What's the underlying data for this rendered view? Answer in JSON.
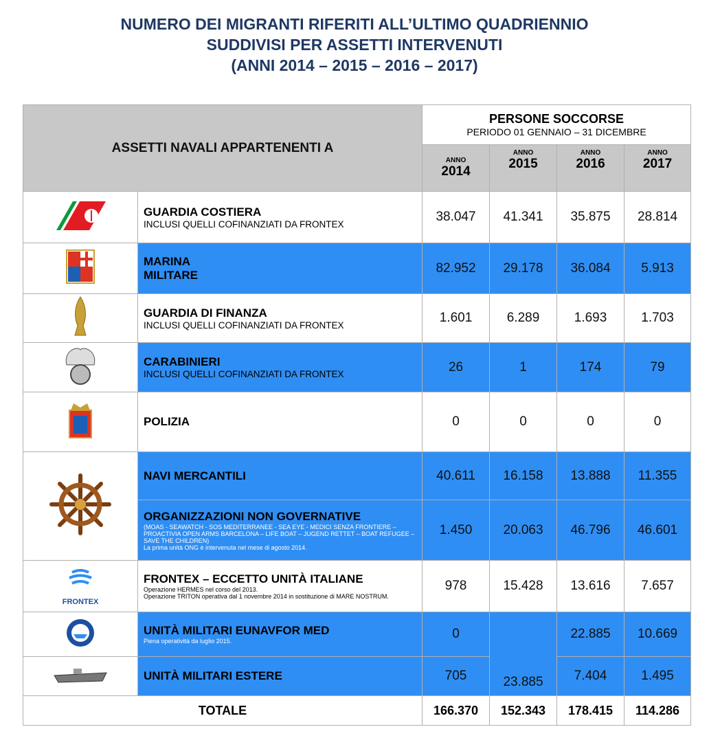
{
  "title": [
    "NUMERO DEI MIGRANTI RIFERITI ALL’ULTIMO QUADRIENNIO",
    "SUDDIVISI PER ASSETTI INTERVENUTI",
    "(ANNI 2014 – 2015 – 2016 – 2017)"
  ],
  "table": {
    "header_left": "ASSETTI NAVALI APPARTENENTI A",
    "header_group": "PERSONE SOCCORSE",
    "header_period": "PERIODO 01 GENNAIO – 31 DICEMBRE",
    "years": [
      {
        "label": "ANNO",
        "year": "2014"
      },
      {
        "label": "ANNO",
        "year": "2015"
      },
      {
        "label": "ANNO",
        "year": "2016"
      },
      {
        "label": "ANNO",
        "year": "2017"
      }
    ],
    "rows": [
      {
        "name": "GUARDIA COSTIERA",
        "note": [
          "INCLUSI QUELLI COFINANZIATI DA FRONTEX"
        ],
        "values": [
          "38.047",
          "41.341",
          "35.875",
          "28.814"
        ]
      },
      {
        "name": "MARINA\nMILITARE",
        "values": [
          "82.952",
          "29.178",
          "36.084",
          "5.913"
        ]
      },
      {
        "name": "GUARDIA DI FINANZA",
        "note": [
          "INCLUSI QUELLI COFINANZIATI DA FRONTEX"
        ],
        "values": [
          "1.601",
          "6.289",
          "1.693",
          "1.703"
        ]
      },
      {
        "name": "CARABINIERI",
        "note": [
          "INCLUSI QUELLI COFINANZIATI DA FRONTEX"
        ],
        "values": [
          "26",
          "1",
          "174",
          "79"
        ]
      },
      {
        "name": "POLIZIA",
        "values": [
          "0",
          "0",
          "0",
          "0"
        ]
      },
      {
        "name": "NAVI MERCANTILI",
        "values": [
          "40.611",
          "16.158",
          "13.888",
          "11.355"
        ]
      },
      {
        "name": "ORGANIZZAZIONI NON GOVERNATIVE",
        "small_note": [
          "(MOAS - SEAWATCH - SOS MEDITERRANEE - SEA EYE - MEDICI SENZA FRONTIERE – PROACTIVIA OPEN ARMS BARCELONA – LIFE BOAT – JUGEND RETTET – BOAT REFUGEE – SAVE THE CHILDREN)",
          "La prima unità ONG è intervenuta nel mese di agosto 2014."
        ],
        "values": [
          "1.450",
          "20.063",
          "46.796",
          "46.601"
        ]
      },
      {
        "name": "FRONTEX – ECCETTO UNITÀ ITALIANE",
        "logo": "FRONTEX",
        "small_note": [
          "Operazione HERMES nel corso del 2013.",
          "Operazione TRITON operativa dal 1 novembre 2014 in sostituzione di MARE NOSTRUM."
        ],
        "values": [
          "978",
          "15.428",
          "13.616",
          "7.657"
        ]
      },
      {
        "name": "UNITÀ MILITARI EUNAVFOR MED",
        "small_note": [
          "Piena operatività da luglio 2015."
        ],
        "values": [
          "0",
          "23.885",
          "22.885",
          "10.669"
        ],
        "rowspan": [
          1,
          2,
          1,
          1
        ]
      },
      {
        "name": "UNITÀ MILITARI ESTERE",
        "values": [
          "705",
          "7.404",
          "1.495"
        ]
      }
    ],
    "total": {
      "label": "TOTALE",
      "values": [
        "166.370",
        "152.343",
        "178.415",
        "114.286"
      ]
    }
  }
}
